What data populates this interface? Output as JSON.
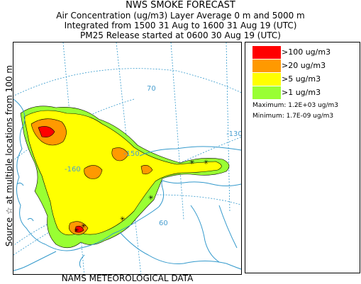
{
  "header": {
    "title": "NWS SMOKE FORECAST",
    "line1": "Air Concentration (ug/m3) Layer Average    0 m and  5000 m",
    "line2": "Integrated from 1500 31 Aug to 1600 31 Aug 19 (UTC)",
    "line3": "PM25 Release started at 0600 30 Aug 19 (UTC)"
  },
  "side_label": "Source ☆  at multiple locations    from  100 m",
  "footer": "NAMS METEOROLOGICAL DATA",
  "graticule_labels": [
    "70",
    "60",
    "-160",
    "-150",
    "-130"
  ],
  "legend": {
    "items": [
      {
        "label": ">100 ug/m3",
        "color": "#ff0000"
      },
      {
        "label": ">20 ug/m3",
        "color": "#ff9900"
      },
      {
        "label": ">5 ug/m3",
        "color": "#ffff00"
      },
      {
        "label": ">1 ug/m3",
        "color": "#99ff33"
      }
    ],
    "maximum": "Maximum:  1.2E+03 ug/m3",
    "minimum": "Minimum:  1.7E-09 ug/m3"
  },
  "colors": {
    "coast": "#3399cc",
    "graticule": "#3399cc",
    "grid_label": "#4a9fd0"
  }
}
